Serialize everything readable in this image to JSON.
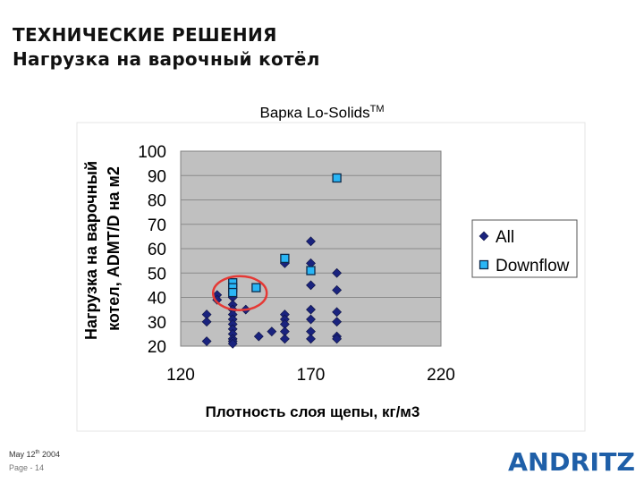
{
  "slide": {
    "title_line1": "ТЕХНИЧЕСКИЕ РЕШЕНИЯ",
    "title_line2": "Нагрузка на варочный котёл",
    "footer_date_prefix": "May 12",
    "footer_date_sup": "th",
    "footer_date_suffix": " 2004",
    "footer_page": "Page - 14",
    "logo_text": "ANDRITZ",
    "colors": {
      "logo": "#1f5fa8",
      "all_marker": "#1a237e",
      "downflow_marker": "#29b6f6",
      "plot_bg": "#c0c0c0",
      "highlight": "#e53935"
    }
  },
  "chart_data": {
    "type": "scatter",
    "title": "Варка Lo-Solids",
    "title_sup": "TM",
    "xlabel": "Плотность слоя щепы, кг/м3",
    "ylabel_line1": "Нагрузка на варочный",
    "ylabel_line2": "котел, ADMT/D на м2",
    "xlim": [
      120,
      220
    ],
    "ylim": [
      20,
      100
    ],
    "xticks": [
      120,
      170,
      220
    ],
    "yticks": [
      20,
      30,
      40,
      50,
      60,
      70,
      80,
      90,
      100
    ],
    "grid": "horizontal",
    "legend": "right",
    "series": [
      {
        "name": "All",
        "marker": "diamond",
        "color": "#1a237e",
        "points": [
          [
            130,
            33
          ],
          [
            130,
            30
          ],
          [
            130,
            22
          ],
          [
            134,
            41
          ],
          [
            134,
            39
          ],
          [
            140,
            40
          ],
          [
            140,
            37
          ],
          [
            140,
            35
          ],
          [
            140,
            33
          ],
          [
            140,
            31
          ],
          [
            140,
            29
          ],
          [
            140,
            27
          ],
          [
            140,
            25
          ],
          [
            140,
            23
          ],
          [
            140,
            22
          ],
          [
            140,
            21
          ],
          [
            145,
            35
          ],
          [
            150,
            24
          ],
          [
            155,
            26
          ],
          [
            160,
            54
          ],
          [
            160,
            33
          ],
          [
            160,
            31
          ],
          [
            160,
            29
          ],
          [
            160,
            26
          ],
          [
            160,
            23
          ],
          [
            170,
            63
          ],
          [
            170,
            54
          ],
          [
            170,
            45
          ],
          [
            170,
            35
          ],
          [
            170,
            31
          ],
          [
            170,
            26
          ],
          [
            170,
            23
          ],
          [
            180,
            50
          ],
          [
            180,
            43
          ],
          [
            180,
            34
          ],
          [
            180,
            30
          ],
          [
            180,
            24
          ],
          [
            180,
            23
          ]
        ]
      },
      {
        "name": "Downflow",
        "marker": "square",
        "color": "#29b6f6",
        "points": [
          [
            140,
            46
          ],
          [
            140,
            44
          ],
          [
            140,
            42
          ],
          [
            149,
            44
          ],
          [
            160,
            56
          ],
          [
            170,
            51
          ],
          [
            180,
            89
          ]
        ]
      }
    ],
    "annotations": [
      {
        "type": "ellipse",
        "cx": 140,
        "cy": 41
      }
    ]
  }
}
